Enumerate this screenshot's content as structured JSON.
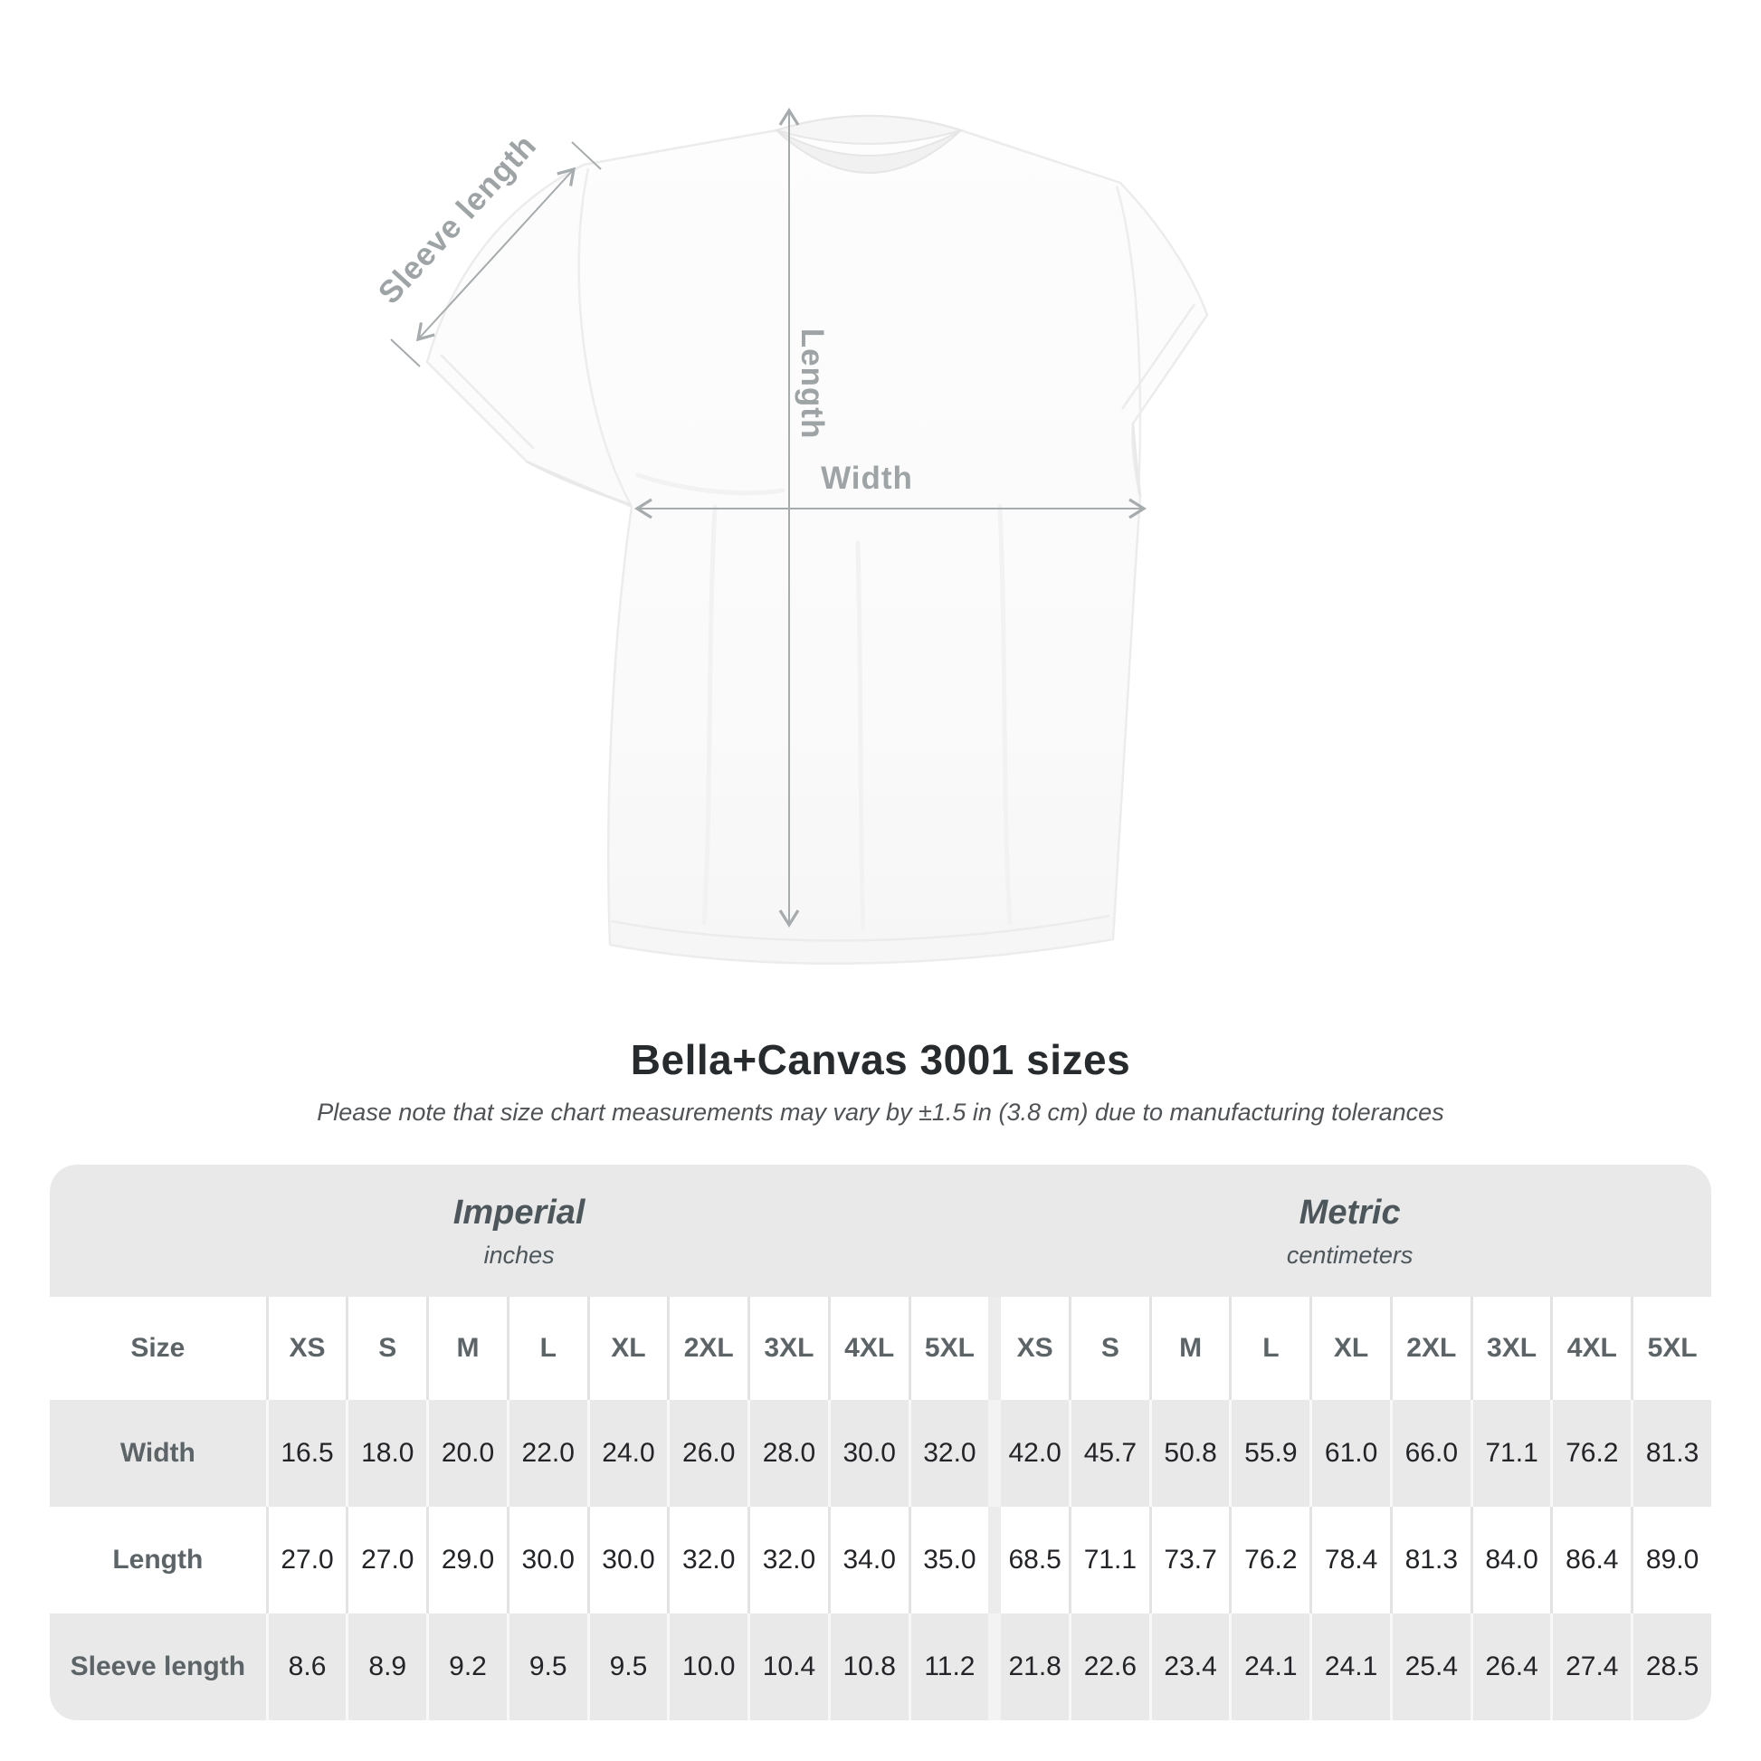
{
  "diagram": {
    "sleeve_length_label": "Sleeve length",
    "length_label": "Length",
    "width_label": "Width"
  },
  "title": "Bella+Canvas 3001 sizes",
  "subtitle": "Please note that size chart measurements may vary by ±1.5 in (3.8 cm) due to manufacturing tolerances",
  "table": {
    "size_label": "Size",
    "groups": [
      {
        "label": "Imperial",
        "unit": "inches"
      },
      {
        "label": "Metric",
        "unit": "centimeters"
      }
    ]
  },
  "colors": {
    "row_shade": "#e9e9e9",
    "annotation_gray": "#9ea3a5",
    "label_text": "#5c6468",
    "number_text": "#222427"
  },
  "chart_data": {
    "type": "table",
    "title": "Bella+Canvas 3001 sizes",
    "subtitle": "Please note that size chart measurements may vary by ±1.5 in (3.8 cm) due to manufacturing tolerances",
    "column_groups": [
      {
        "label": "Imperial",
        "unit": "inches"
      },
      {
        "label": "Metric",
        "unit": "centimeters"
      }
    ],
    "sizes": [
      "XS",
      "S",
      "M",
      "L",
      "XL",
      "2XL",
      "3XL",
      "4XL",
      "5XL"
    ],
    "rows": [
      {
        "measurement": "Width",
        "imperial_in": [
          16.5,
          18.0,
          20.0,
          22.0,
          24.0,
          26.0,
          28.0,
          30.0,
          32.0
        ],
        "metric_cm": [
          42.0,
          45.7,
          50.8,
          55.9,
          61.0,
          66.0,
          71.1,
          76.2,
          81.3
        ]
      },
      {
        "measurement": "Length",
        "imperial_in": [
          27.0,
          27.0,
          29.0,
          30.0,
          30.0,
          32.0,
          32.0,
          34.0,
          35.0
        ],
        "metric_cm": [
          68.5,
          71.1,
          73.7,
          76.2,
          78.4,
          81.3,
          84.0,
          86.4,
          89.0
        ]
      },
      {
        "measurement": "Sleeve length",
        "imperial_in": [
          8.6,
          8.9,
          9.2,
          9.5,
          9.5,
          10.0,
          10.4,
          10.8,
          11.2
        ],
        "metric_cm": [
          21.8,
          22.6,
          23.4,
          24.1,
          24.1,
          25.4,
          26.4,
          27.4,
          28.5
        ]
      }
    ]
  }
}
